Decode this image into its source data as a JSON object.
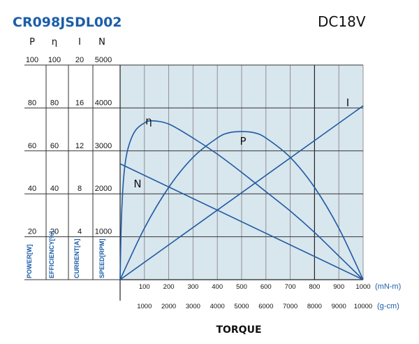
{
  "chart_data": {
    "type": "line",
    "model": "CR098JSDL002",
    "voltage": "DC18V",
    "xlabel": "TORQUE",
    "x_units": [
      "(mN-m)",
      "(g-cm)"
    ],
    "x_ticks_mNm": [
      "100",
      "200",
      "300",
      "400",
      "500",
      "600",
      "700",
      "800",
      "900",
      "1000"
    ],
    "x_ticks_gcm": [
      "1000",
      "2000",
      "3000",
      "4000",
      "5000",
      "6000",
      "7000",
      "8000",
      "9000",
      "10000"
    ],
    "xlim_mNm": [
      0,
      1000
    ],
    "y_axes": [
      {
        "symbol": "P",
        "label": "POWER[W]",
        "ticks": [
          "20",
          "40",
          "60",
          "80",
          "100"
        ],
        "max": 100
      },
      {
        "symbol": "η",
        "label": "EFFICIENCY[%]",
        "ticks": [
          "20",
          "40",
          "60",
          "80",
          "100"
        ],
        "max": 100
      },
      {
        "symbol": "I",
        "label": "CURRENT[A]",
        "ticks": [
          "4",
          "8",
          "12",
          "16",
          "20"
        ],
        "max": 20
      },
      {
        "symbol": "N",
        "label": "SPEED[RPM]",
        "ticks": [
          "1000",
          "2000",
          "3000",
          "4000",
          "5000"
        ],
        "max": 5000
      }
    ],
    "grid": true,
    "series": [
      {
        "name": "η",
        "axis": "η",
        "x": [
          0,
          5,
          15,
          30,
          60,
          100,
          130,
          200,
          300,
          400,
          500,
          600,
          700,
          800,
          900,
          1000
        ],
        "y": [
          0,
          27,
          48,
          60,
          69,
          73,
          74,
          72.5,
          66,
          58.5,
          50,
          41,
          32,
          22,
          11,
          0
        ]
      },
      {
        "name": "P",
        "axis": "P",
        "x": [
          0,
          100,
          200,
          300,
          400,
          450,
          500,
          550,
          600,
          700,
          800,
          900,
          1000
        ],
        "y": [
          0,
          24,
          43,
          57,
          66,
          68.5,
          69,
          68.5,
          66,
          57,
          43,
          24,
          0
        ]
      },
      {
        "name": "I",
        "axis": "I",
        "x": [
          0,
          1000
        ],
        "y": [
          0,
          16.2
        ]
      },
      {
        "name": "N",
        "axis": "N",
        "x": [
          0,
          1000
        ],
        "y": [
          2700,
          0
        ]
      }
    ]
  },
  "icons": {
    "background": "#d8e6ee",
    "curve_color": "#1f5aa0",
    "grid_color": "#444444",
    "brand_color": "#1c5ea8"
  }
}
